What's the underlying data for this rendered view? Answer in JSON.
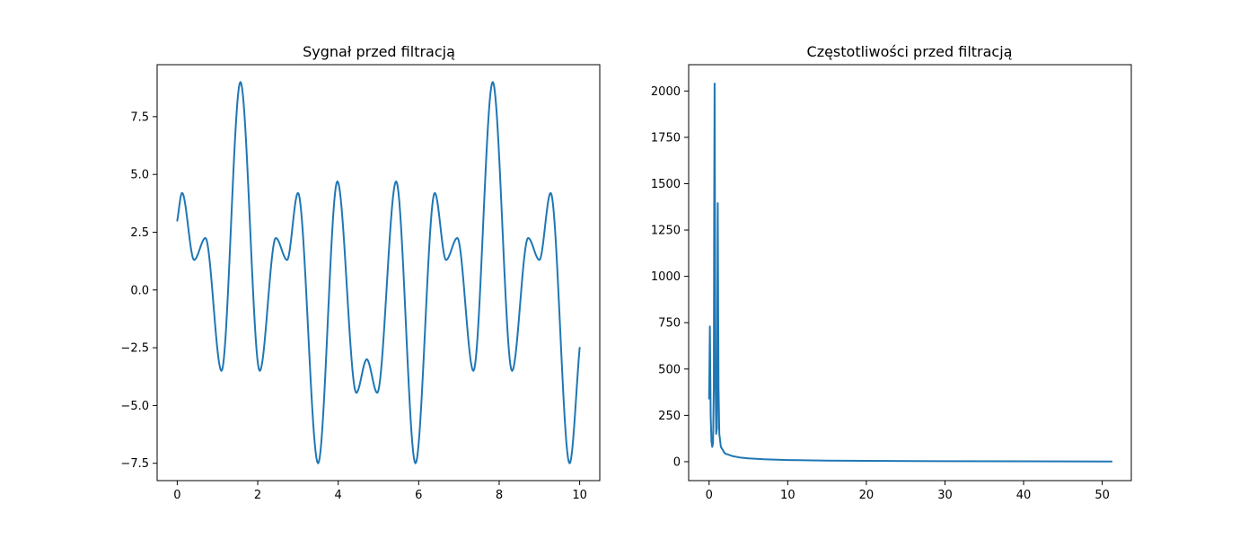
{
  "chart_data": [
    {
      "type": "line",
      "title": "Sygnał przed filtracją",
      "xlabel": "",
      "ylabel": "",
      "xlim": [
        -0.5,
        10.5
      ],
      "ylim": [
        -8.25,
        9.75
      ],
      "xticks": [
        0,
        2,
        4,
        6,
        8,
        10
      ],
      "xtick_labels": [
        "0",
        "2",
        "4",
        "6",
        "8",
        "10"
      ],
      "yticks": [
        -7.5,
        -5.0,
        -2.5,
        0.0,
        2.5,
        5.0,
        7.5
      ],
      "ytick_labels": [
        "−7.5",
        "−5.0",
        "−2.5",
        "0.0",
        "2.5",
        "5.0",
        "7.5"
      ],
      "grid": false,
      "series": [
        {
          "color": "#1f77b4",
          "x": [
            0,
            0.12,
            0.42,
            0.7,
            1.1,
            1.57,
            2.05,
            2.45,
            2.73,
            3.0,
            3.5,
            3.98,
            4.45,
            4.71,
            4.97,
            5.44,
            5.92,
            6.4,
            6.68,
            6.96,
            7.36,
            7.84,
            8.32,
            8.72,
            9.0,
            9.28,
            9.75,
            10.0
          ],
          "y": [
            3.0,
            4.2,
            1.3,
            2.25,
            -3.5,
            9.0,
            -3.5,
            2.25,
            1.3,
            4.2,
            -7.5,
            4.7,
            -4.45,
            -3.0,
            -4.45,
            4.7,
            -7.5,
            4.2,
            1.3,
            2.25,
            -3.5,
            9.0,
            -3.5,
            2.25,
            1.3,
            4.2,
            -7.5,
            -2.5
          ]
        }
      ]
    },
    {
      "type": "line",
      "title": "Częstotliwości przed filtracją",
      "xlabel": "",
      "ylabel": "",
      "xlim": [
        -2.6,
        53.7
      ],
      "ylim": [
        -102,
        2142
      ],
      "xticks": [
        0,
        10,
        20,
        30,
        40,
        50
      ],
      "xtick_labels": [
        "0",
        "10",
        "20",
        "30",
        "40",
        "50"
      ],
      "yticks": [
        0,
        250,
        500,
        750,
        1000,
        1250,
        1500,
        1750,
        2000
      ],
      "ytick_labels": [
        "0",
        "250",
        "500",
        "750",
        "1000",
        "1250",
        "1500",
        "1750",
        "2000"
      ],
      "grid": false,
      "series": [
        {
          "color": "#1f77b4",
          "x": [
            0.0,
            0.1,
            0.2,
            0.3,
            0.4,
            0.5,
            0.6,
            0.65,
            0.7,
            0.8,
            0.9,
            1.0,
            1.1,
            1.2,
            1.3,
            1.5,
            2,
            3,
            4,
            5,
            7,
            10,
            15,
            20,
            30,
            40,
            51.2
          ],
          "y": [
            340,
            730,
            250,
            110,
            80,
            100,
            400,
            1400,
            2040,
            500,
            150,
            180,
            1395,
            400,
            150,
            80,
            45,
            30,
            22,
            18,
            13,
            9,
            6,
            4.5,
            3,
            2,
            1
          ]
        }
      ]
    }
  ]
}
